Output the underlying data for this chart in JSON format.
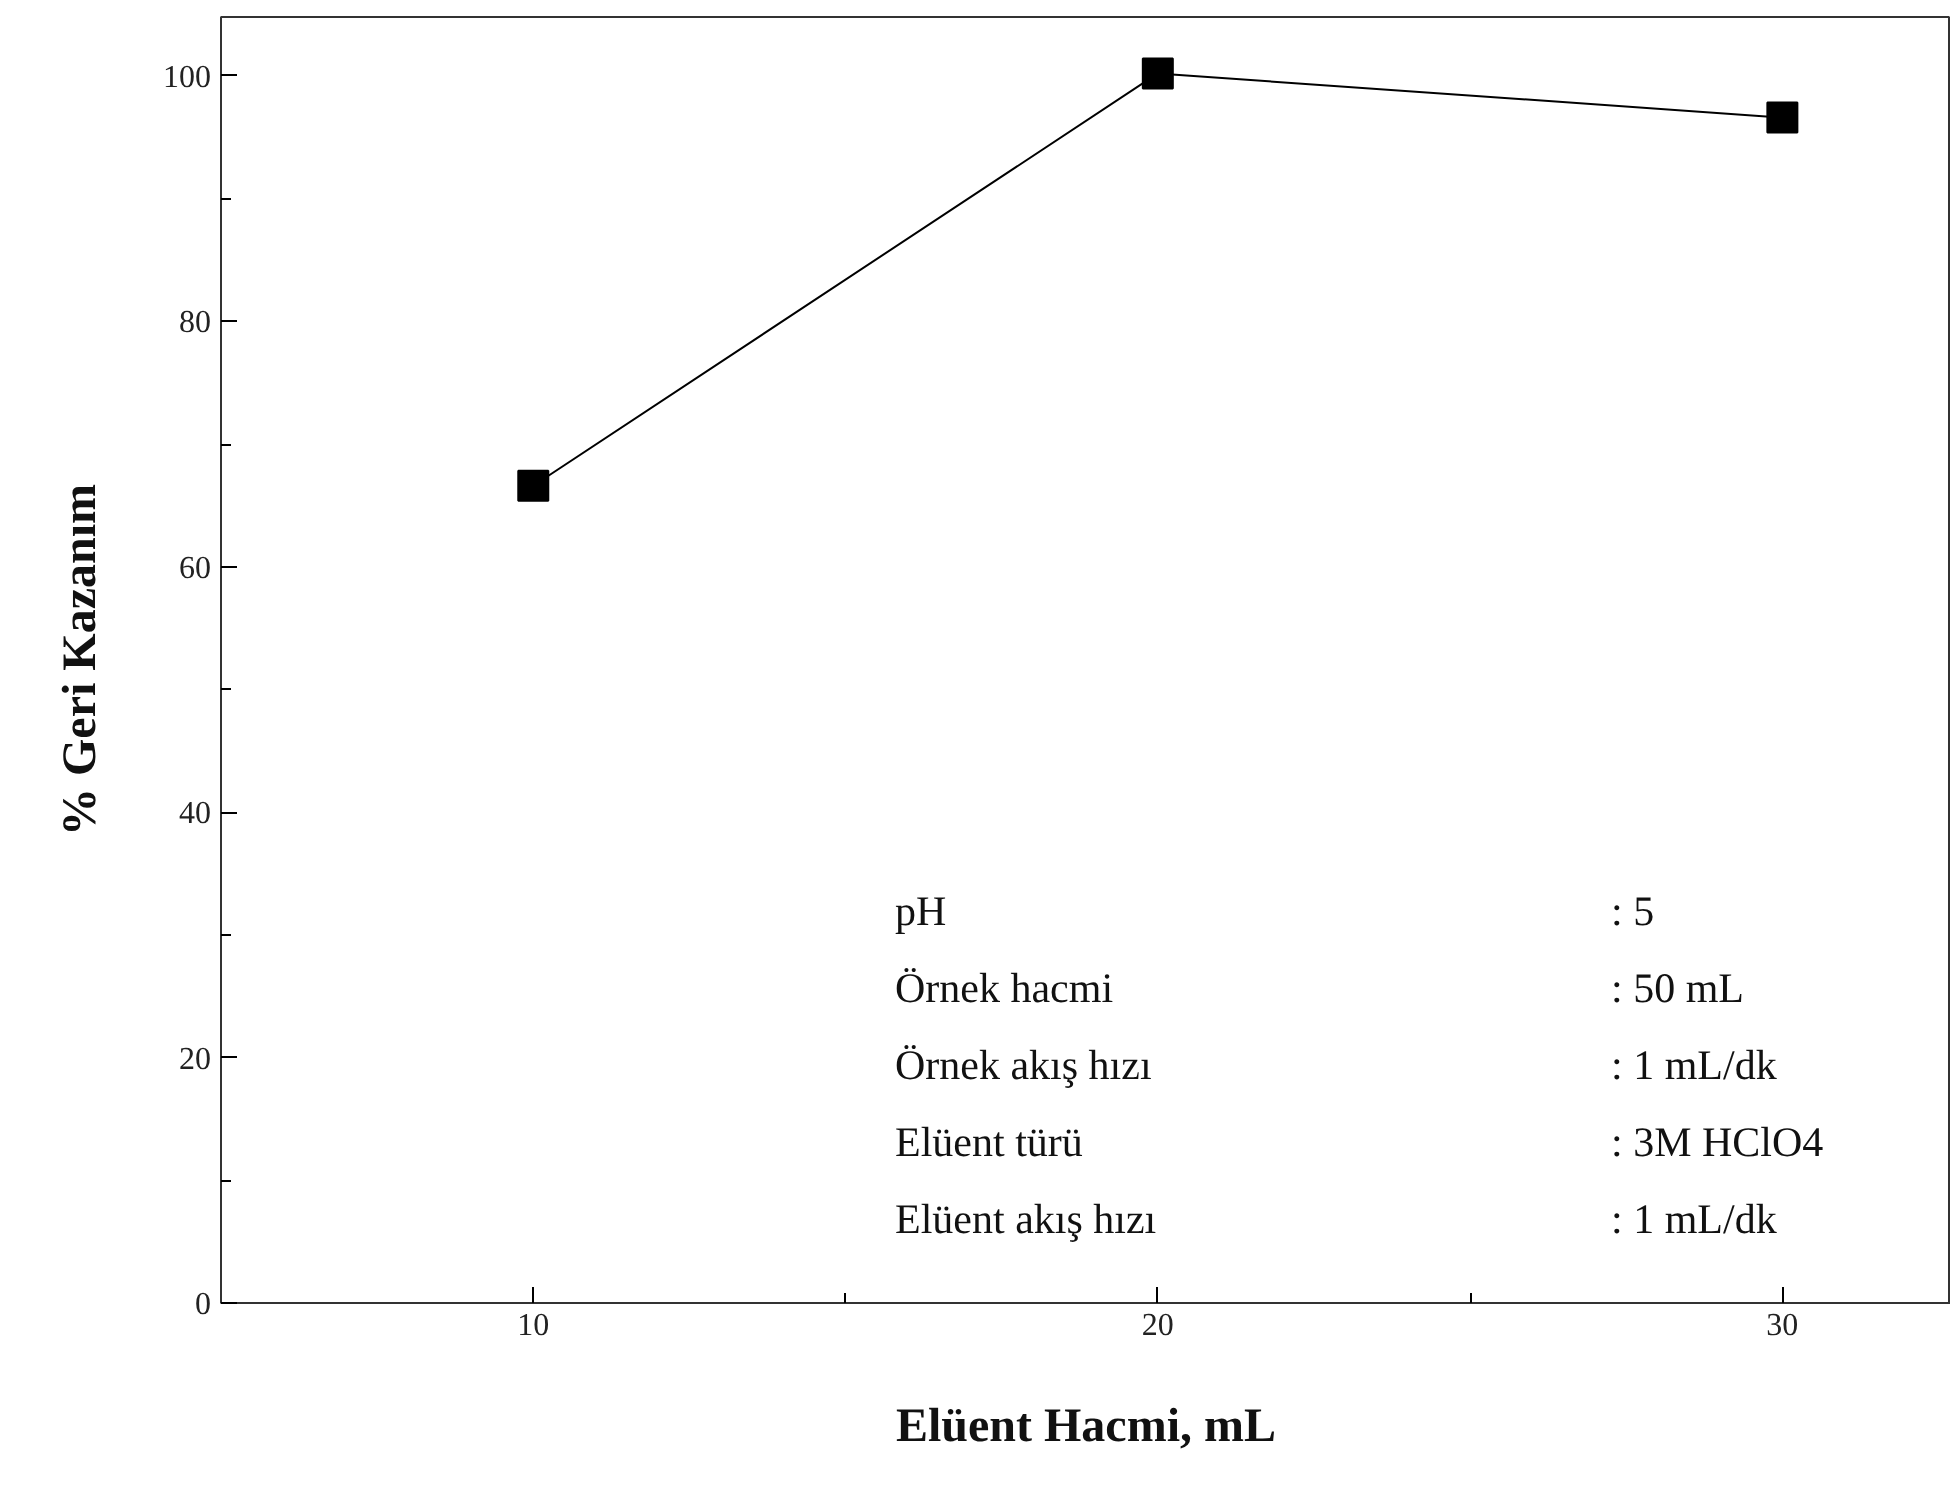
{
  "chart_data": {
    "type": "line",
    "xlabel": "Elüent Hacmi, mL",
    "ylabel": "% Geri Kazanım",
    "x": [
      10,
      20,
      30
    ],
    "series": [
      {
        "color": "#000000",
        "values": [
          66.6,
          100.2,
          96.6
        ]
      }
    ],
    "marker": "square",
    "line_style": "solid",
    "grid": false,
    "xlim": [
      5,
      32.7
    ],
    "ylim": [
      0,
      104.8
    ],
    "xticks": [
      10,
      20,
      30
    ],
    "yticks": [
      0,
      20,
      40,
      60,
      80,
      100
    ],
    "annotations": [
      "pH",
      ": 5",
      "Örnek hacmi",
      ": 50 mL",
      "Örnek akış hızı",
      ": 1 mL/dk",
      "Elüent türü",
      ": 3M HClO4",
      "Elüent akış hızı",
      ": 1 mL/dk"
    ]
  }
}
